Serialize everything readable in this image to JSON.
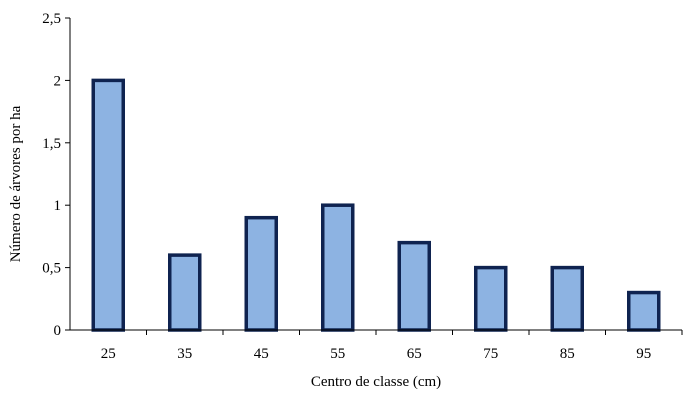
{
  "chart_data": {
    "type": "bar",
    "categories": [
      "25",
      "35",
      "45",
      "55",
      "65",
      "75",
      "85",
      "95"
    ],
    "values": [
      2.0,
      0.6,
      0.9,
      1.0,
      0.7,
      0.5,
      0.5,
      0.3
    ],
    "title": "",
    "xlabel": "Centro de classe (cm)",
    "ylabel": "Número de árvores por ha",
    "ylim": [
      0,
      2.5
    ],
    "yticks": [
      0,
      0.5,
      1,
      1.5,
      2,
      2.5
    ],
    "ytick_labels": [
      "0",
      "0,5",
      "1",
      "1,5",
      "2",
      "2,5"
    ],
    "grid": false,
    "legend": "none",
    "colors": {
      "bar_fill": "#8DB3E2",
      "bar_stroke": "#0F2350",
      "axis": "#000000"
    }
  }
}
